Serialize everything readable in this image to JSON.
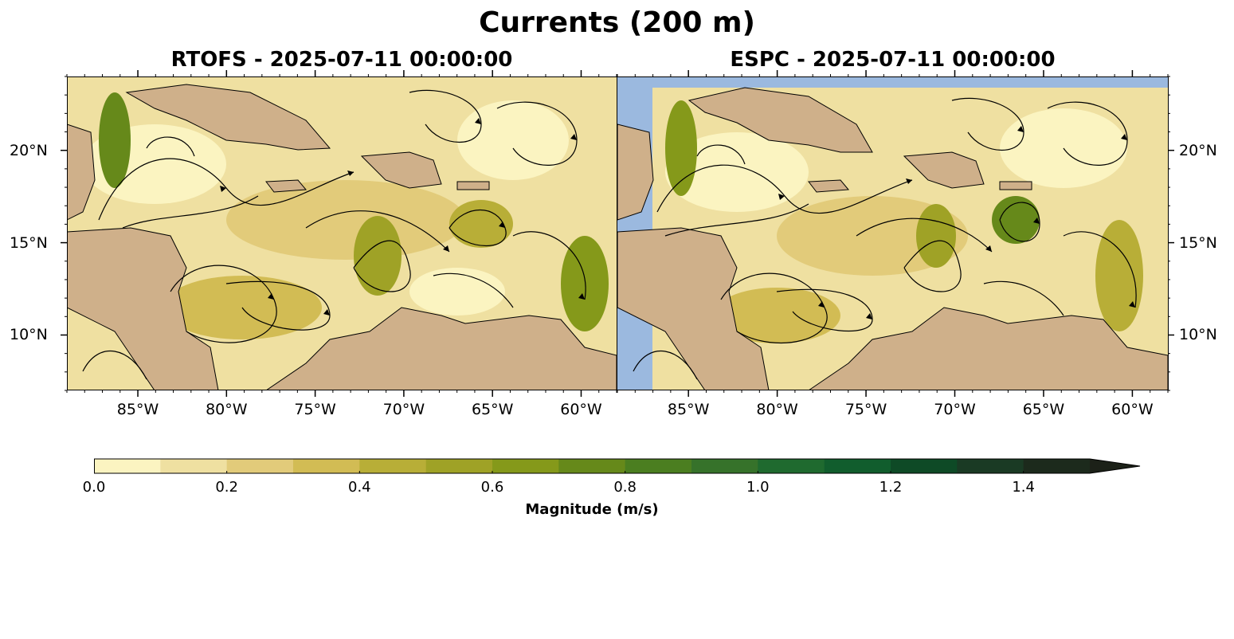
{
  "figure": {
    "title": "Currents (200 m)"
  },
  "panels": [
    {
      "model": "RTOFS",
      "title": "RTOFS - 2025-07-11 00:00:00"
    },
    {
      "model": "ESPC",
      "title": "ESPC - 2025-07-11 00:00:00"
    }
  ],
  "map": {
    "lon_range": [
      -89,
      -58
    ],
    "lat_range": [
      7,
      24
    ],
    "lon_ticks": [
      -85,
      -80,
      -75,
      -70,
      -65,
      -60
    ],
    "lon_tick_labels": [
      "85°W",
      "80°W",
      "75°W",
      "70°W",
      "65°W",
      "60°W"
    ],
    "lat_ticks": [
      10,
      15,
      20
    ],
    "lat_tick_labels": [
      "10°N",
      "15°N",
      "20°N"
    ],
    "colors": {
      "ocean_no_data": "#9bb9df",
      "land": "#cfb08a",
      "streamline": "#000000"
    }
  },
  "colorbar": {
    "label": "Magnitude (m/s)",
    "vmin": 0.0,
    "vmax": 1.5,
    "extend": "max",
    "tick_values": [
      0.0,
      0.2,
      0.4,
      0.6,
      0.8,
      1.0,
      1.2,
      1.4
    ],
    "tick_labels": [
      "0.0",
      "0.2",
      "0.4",
      "0.6",
      "0.8",
      "1.0",
      "1.2",
      "1.4"
    ],
    "colors": [
      "#fbf4c1",
      "#efe0a1",
      "#e2cb7a",
      "#d2bc54",
      "#b8ae37",
      "#9fa226",
      "#85991a",
      "#66891a",
      "#4b7e20",
      "#36722a",
      "#1f6a2f",
      "#115d2d",
      "#0e4a26",
      "#1a3a24",
      "#1c2a1c",
      "#1c2118"
    ]
  }
}
